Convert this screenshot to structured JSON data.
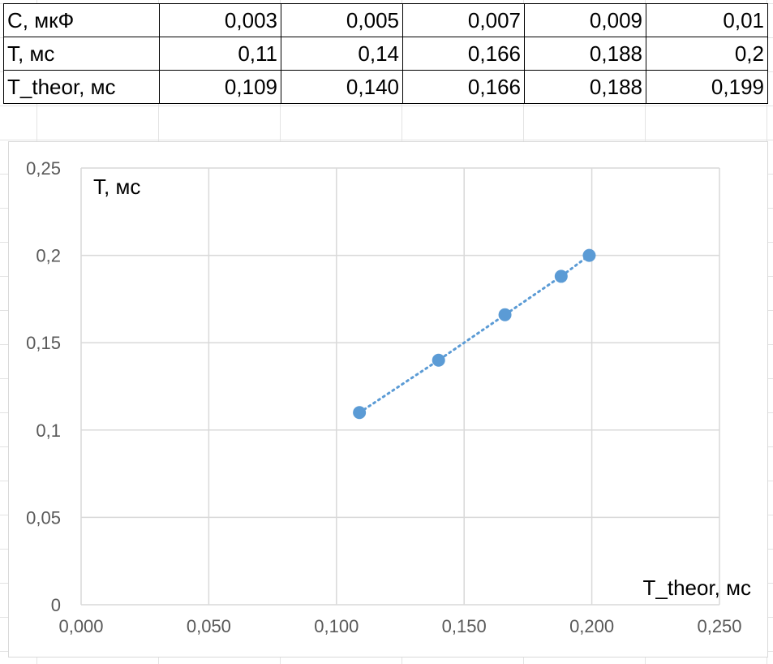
{
  "table": {
    "rows": [
      {
        "label": "C, мкФ",
        "values": [
          "0,003",
          "0,005",
          "0,007",
          "0,009",
          "0,01"
        ]
      },
      {
        "label": "T, мс",
        "values": [
          "0,11",
          "0,14",
          "0,166",
          "0,188",
          "0,2"
        ]
      },
      {
        "label": "T_theor, мс",
        "values": [
          "0,109",
          "0,140",
          "0,166",
          "0,188",
          "0,199"
        ]
      }
    ]
  },
  "chart_data": {
    "type": "scatter",
    "xlabel": "T_theor, мс",
    "ylabel": "T, мс",
    "xlim": [
      0,
      0.25
    ],
    "ylim": [
      0,
      0.25
    ],
    "x_ticks": [
      "0,000",
      "0,050",
      "0,100",
      "0,150",
      "0,200",
      "0,250"
    ],
    "y_ticks": [
      "0",
      "0,05",
      "0,1",
      "0,15",
      "0,2",
      "0,25"
    ],
    "grid": true,
    "legend": "none",
    "series": [
      {
        "x": [
          0.109,
          0.14,
          0.166,
          0.188,
          0.199
        ],
        "y": [
          0.11,
          0.14,
          0.166,
          0.188,
          0.2
        ],
        "color": "#5B9BD5",
        "line_style": "dotted"
      }
    ]
  }
}
